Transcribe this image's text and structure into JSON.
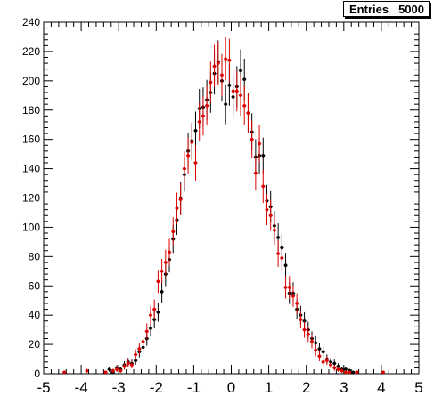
{
  "stats": {
    "label": "Entries",
    "value": "5000"
  },
  "chart_data": {
    "type": "scatter",
    "title": "",
    "xlabel": "",
    "ylabel": "",
    "xlim": [
      -5,
      5
    ],
    "ylim": [
      0,
      240
    ],
    "xticks": [
      "-5",
      "-4",
      "-3",
      "-2",
      "-1",
      "0",
      "1",
      "2",
      "3",
      "4",
      "5"
    ],
    "yticks": [
      "0",
      "20",
      "40",
      "60",
      "80",
      "100",
      "120",
      "140",
      "160",
      "180",
      "200",
      "220",
      "240"
    ],
    "bin_width": 0.1,
    "error_bars": "sqrt(N)",
    "colors": {
      "series_1": "#000000",
      "series_2": "#dd0000"
    },
    "series": [
      {
        "color": "#000000",
        "x": [
          -3.35,
          -3.25,
          -3.15,
          -3.05,
          -2.95,
          -2.85,
          -2.75,
          -2.65,
          -2.55,
          -2.45,
          -2.35,
          -2.25,
          -2.15,
          -2.05,
          -1.95,
          -1.85,
          -1.75,
          -1.65,
          -1.55,
          -1.45,
          -1.35,
          -1.25,
          -1.15,
          -1.05,
          -0.95,
          -0.85,
          -0.75,
          -0.65,
          -0.55,
          -0.45,
          -0.35,
          -0.25,
          -0.15,
          -0.05,
          0.05,
          0.15,
          0.25,
          0.35,
          0.45,
          0.55,
          0.65,
          0.75,
          0.85,
          0.95,
          1.05,
          1.15,
          1.25,
          1.35,
          1.45,
          1.55,
          1.65,
          1.75,
          1.85,
          1.95,
          2.05,
          2.15,
          2.25,
          2.35,
          2.45,
          2.55,
          2.65,
          2.75,
          2.85,
          2.95,
          3.05,
          3.15,
          3.25,
          3.35
        ],
        "y": [
          1,
          3,
          1,
          4,
          3,
          6,
          8,
          7,
          9,
          15,
          18,
          24,
          31,
          37,
          42,
          56,
          68,
          78,
          92,
          105,
          120,
          136,
          152,
          159,
          166,
          181,
          182,
          187,
          192,
          205,
          213,
          200,
          184,
          197,
          189,
          196,
          207,
          201,
          178,
          165,
          148,
          149,
          149,
          118,
          114,
          101,
          93,
          86,
          74,
          55,
          55,
          44,
          40,
          36,
          30,
          24,
          21,
          17,
          15,
          10,
          8,
          7,
          5,
          3,
          3,
          2,
          1,
          1
        ]
      },
      {
        "color": "#dd0000",
        "x": [
          -4.45,
          -3.85,
          -3.35,
          -3.15,
          -3.05,
          -2.95,
          -2.85,
          -2.75,
          -2.65,
          -2.55,
          -2.45,
          -2.35,
          -2.25,
          -2.15,
          -2.05,
          -1.95,
          -1.85,
          -1.75,
          -1.65,
          -1.55,
          -1.45,
          -1.35,
          -1.25,
          -1.15,
          -1.05,
          -0.95,
          -0.85,
          -0.75,
          -0.65,
          -0.55,
          -0.45,
          -0.35,
          -0.25,
          -0.15,
          -0.05,
          0.05,
          0.15,
          0.25,
          0.35,
          0.45,
          0.55,
          0.65,
          0.75,
          0.85,
          0.95,
          1.05,
          1.15,
          1.25,
          1.35,
          1.45,
          1.55,
          1.65,
          1.75,
          1.85,
          1.95,
          2.05,
          2.15,
          2.25,
          2.35,
          2.45,
          2.55,
          2.65,
          2.75,
          2.85,
          2.95,
          3.05,
          3.15,
          3.35,
          4.05
        ],
        "y": [
          1,
          2,
          1,
          2,
          3,
          2,
          5,
          7,
          6,
          13,
          17,
          22,
          29,
          40,
          44,
          63,
          70,
          76,
          83,
          97,
          113,
          119,
          140,
          149,
          158,
          144,
          172,
          176,
          183,
          199,
          210,
          212,
          204,
          215,
          214,
          193,
          193,
          190,
          183,
          178,
          160,
          137,
          157,
          128,
          112,
          108,
          98,
          82,
          79,
          59,
          59,
          53,
          48,
          37,
          30,
          27,
          22,
          16,
          12,
          8,
          9,
          6,
          4,
          3,
          2,
          1,
          1,
          1,
          1
        ]
      }
    ]
  }
}
